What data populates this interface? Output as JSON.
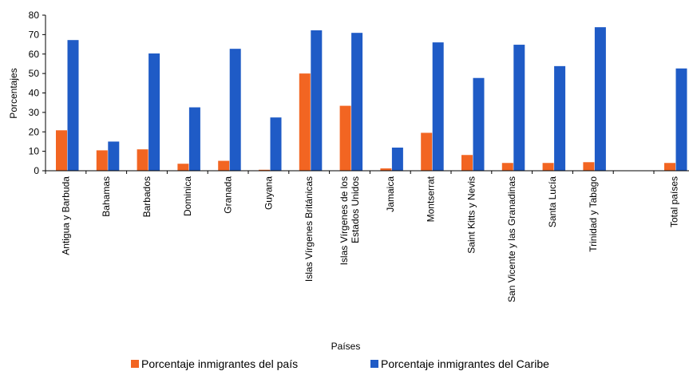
{
  "chart_data": {
    "type": "bar",
    "xlabel": "Países",
    "ylabel": "Porcentajes",
    "ylim": [
      0,
      80
    ],
    "yticks": [
      0,
      10,
      20,
      30,
      40,
      50,
      60,
      70,
      80
    ],
    "grid": false,
    "legend_position": "bottom",
    "categories": [
      "Antigua y Barbuda",
      "Bahamas",
      "Barbados",
      "Dominica",
      "Granada",
      "Guyana",
      "Islas Vírgenes Británicas",
      "Islas Vírgenes de los Estados Unidos",
      "Jamaica",
      "Montserrat",
      "Saint Kitts y Nevis",
      "San Vicente y las Granadinas",
      "Santa Lucía",
      "Trinidad y Tabago",
      "",
      "Total países"
    ],
    "series": [
      {
        "name": "Porcentaje inmigrantes del país",
        "color": "#F26522",
        "values": [
          20.8,
          10.5,
          11.0,
          3.6,
          5.1,
          0.5,
          50.0,
          33.4,
          1.2,
          19.5,
          8.1,
          4.0,
          4.0,
          4.4,
          null,
          4.0
        ]
      },
      {
        "name": "Porcentaje inmigrantes del Caribe",
        "color": "#1F5BC6",
        "values": [
          67.2,
          15.0,
          60.3,
          32.6,
          62.7,
          27.4,
          72.2,
          70.9,
          11.9,
          66.0,
          47.7,
          64.8,
          53.8,
          73.8,
          null,
          52.6
        ]
      }
    ]
  }
}
